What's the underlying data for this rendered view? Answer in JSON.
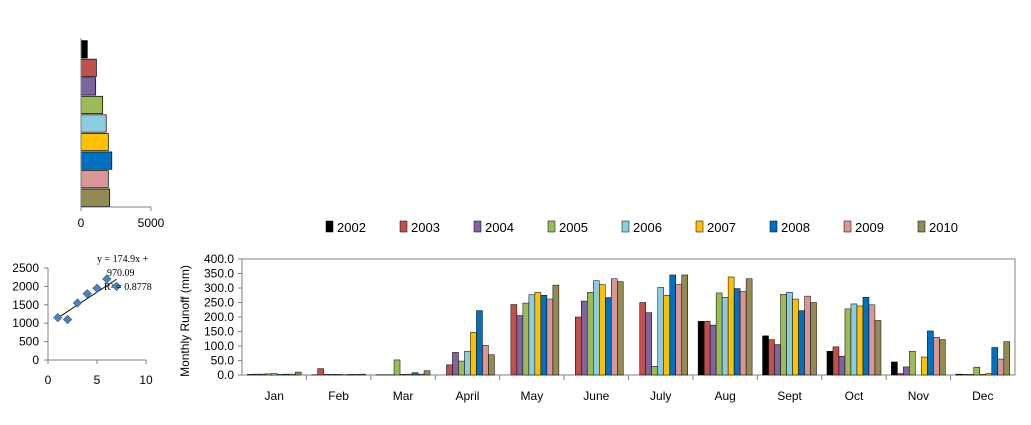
{
  "chart_data": [
    {
      "type": "bar",
      "orientation": "horizontal",
      "categories": [
        "2002",
        "2003",
        "2004",
        "2005",
        "2006",
        "2007",
        "2008",
        "2009",
        "2010"
      ],
      "values": [
        450,
        1100,
        1050,
        1550,
        1800,
        1950,
        2200,
        1950,
        2050
      ],
      "xlim": [
        0,
        5000
      ],
      "xticks": [
        "0",
        "5000"
      ],
      "grid": false
    },
    {
      "type": "scatter",
      "x": [
        1,
        2,
        3,
        4,
        5,
        6,
        7
      ],
      "y": [
        1150,
        1100,
        1550,
        1800,
        1950,
        2200,
        2000
      ],
      "xlim": [
        0,
        10
      ],
      "ylim": [
        0,
        2500
      ],
      "xticks": [
        "0",
        "5",
        "10"
      ],
      "yticks": [
        "0",
        "500",
        "1000",
        "1500",
        "2000",
        "2500"
      ],
      "trendline": {
        "slope": 174.9,
        "intercept": 970.09
      },
      "annotation": [
        "y = 174.9x +",
        "970.09",
        "R² = 0.8778"
      ],
      "grid": false
    },
    {
      "type": "bar",
      "ylabel": "Monthly  Runoff (mm)",
      "ylim": [
        0,
        400
      ],
      "yticks": [
        "0.0",
        "50.0",
        "100.0",
        "150.0",
        "200.0",
        "250.0",
        "300.0",
        "350.0",
        "400.0"
      ],
      "categories": [
        "Jan",
        "Feb",
        "Mar",
        "April",
        "May",
        "June",
        "July",
        "Aug",
        "Sept",
        "Oct",
        "Nov",
        "Dec"
      ],
      "legend_position": "top",
      "series": [
        {
          "name": "2002",
          "color": "#000000",
          "values": [
            2,
            1,
            1,
            0,
            0,
            0,
            0,
            185,
            135,
            82,
            45,
            3
          ]
        },
        {
          "name": "2003",
          "color": "#c0504d",
          "values": [
            3,
            22,
            1,
            35,
            243,
            200,
            250,
            185,
            122,
            97,
            5,
            2
          ]
        },
        {
          "name": "2004",
          "color": "#8064a2",
          "values": [
            3,
            2,
            1,
            78,
            205,
            255,
            215,
            172,
            105,
            65,
            28,
            2
          ]
        },
        {
          "name": "2005",
          "color": "#9bbb59",
          "values": [
            4,
            2,
            52,
            48,
            248,
            285,
            30,
            283,
            278,
            228,
            82,
            27
          ]
        },
        {
          "name": "2006",
          "color": "#8ccce0",
          "values": [
            5,
            2,
            2,
            82,
            277,
            325,
            302,
            268,
            285,
            245,
            0,
            2
          ]
        },
        {
          "name": "2007",
          "color": "#ffc000",
          "values": [
            2,
            1,
            3,
            147,
            285,
            312,
            275,
            338,
            262,
            238,
            62,
            5
          ]
        },
        {
          "name": "2008",
          "color": "#0070c0",
          "values": [
            3,
            2,
            8,
            222,
            275,
            267,
            345,
            298,
            222,
            268,
            152,
            95
          ]
        },
        {
          "name": "2009",
          "color": "#d99694",
          "values": [
            3,
            2,
            3,
            102,
            262,
            332,
            312,
            288,
            272,
            242,
            130,
            55
          ]
        },
        {
          "name": "2010",
          "color": "#948a54",
          "values": [
            10,
            3,
            15,
            70,
            310,
            322,
            345,
            332,
            250,
            188,
            122,
            115
          ]
        }
      ]
    }
  ]
}
